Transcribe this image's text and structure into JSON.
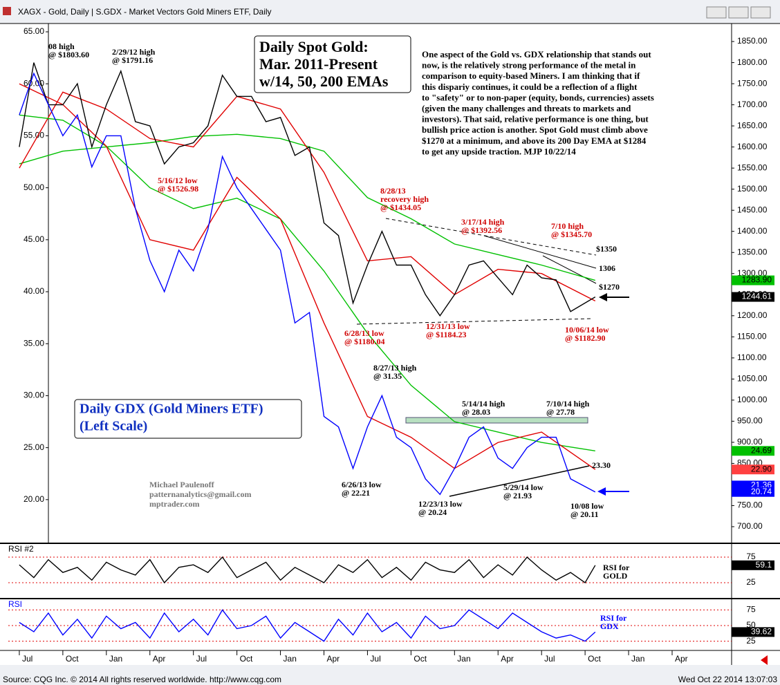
{
  "window": {
    "title": "XAGX - Gold, Daily  |  S.GDX - Market Vectors Gold Miners ETF, Daily",
    "source": "Source: CQG Inc. © 2014 All rights reserved worldwide. http://www.cqg.com",
    "timestamp": "Wed Oct 22 2014 13:07:03"
  },
  "chart_data": [
    {
      "type": "line",
      "title": [
        "Daily Spot Gold:",
        "Mar. 2011-Present",
        "w/14, 50, 200 EMAs"
      ],
      "subtitle": [
        "Daily GDX (Gold Miners ETF)",
        "(Left Scale)"
      ],
      "commentary": [
        "One aspect of the Gold vs. GDX relationship that stands out",
        "now, is the relatively strong performance of the metal in",
        "comparison to equity-based Miners. I am thinking that if",
        "this dispariy continues, it could be a reflection of a flight",
        "to \"safety\" or to non-paper (equity, bonds, currencies) assets",
        "(given the many challenges and threats to markets and",
        "investors). That said, relative performance is one thing, but",
        "bullish price action is another. Spot Gold must climb above",
        "$1270 at a minimum, and above its 200 Day EMA at $1284",
        "to get any upside traction.  MJP 10/22/14"
      ],
      "credits": [
        "Michael Paulenoff",
        "patternanalytics@gmail.com",
        "mptrader.com"
      ],
      "xlim": [
        -0.76,
        49.1
      ],
      "xticks": [
        {
          "value": 0,
          "label": "Jul"
        },
        {
          "value": 3,
          "label": "Oct"
        },
        {
          "value": 6,
          "label": "Jan"
        },
        {
          "value": 9,
          "label": "Apr"
        },
        {
          "value": 12,
          "label": "Jul"
        },
        {
          "value": 15,
          "label": "Oct"
        },
        {
          "value": 18,
          "label": "Jan"
        },
        {
          "value": 21,
          "label": "Apr"
        },
        {
          "value": 24,
          "label": "Jul"
        },
        {
          "value": 27,
          "label": "Oct"
        },
        {
          "value": 30,
          "label": "Jan"
        },
        {
          "value": 33,
          "label": "Apr"
        },
        {
          "value": 36,
          "label": "Jul"
        },
        {
          "value": 39,
          "label": "Oct"
        },
        {
          "value": 42,
          "label": "Jan"
        },
        {
          "value": 45,
          "label": "Apr"
        }
      ],
      "ylim": [
        15.8,
        65.8
      ],
      "yticks": [
        {
          "value": 20,
          "label": "20.00"
        },
        {
          "value": 25,
          "label": "25.00"
        },
        {
          "value": 30,
          "label": "30.00"
        },
        {
          "value": 35,
          "label": "35.00"
        },
        {
          "value": 40,
          "label": "40.00"
        },
        {
          "value": 45,
          "label": "45.00"
        },
        {
          "value": 50,
          "label": "50.00"
        },
        {
          "value": 55,
          "label": "55.00"
        },
        {
          "value": 60,
          "label": "60.00"
        },
        {
          "value": 65,
          "label": "65.00"
        }
      ],
      "y2lim": [
        660.6,
        1892.7
      ],
      "y2ticks": [
        {
          "value": 700,
          "label": "700.00"
        },
        {
          "value": 750,
          "label": "750.00"
        },
        {
          "value": 800,
          "label": "800.00"
        },
        {
          "value": 850,
          "label": "850.00"
        },
        {
          "value": 900,
          "label": "900.00"
        },
        {
          "value": 950,
          "label": "950.00"
        },
        {
          "value": 1000,
          "label": "1000.00"
        },
        {
          "value": 1050,
          "label": "1050.00"
        },
        {
          "value": 1100,
          "label": "1100.00"
        },
        {
          "value": 1150,
          "label": "1150.00"
        },
        {
          "value": 1200,
          "label": "1200.00"
        },
        {
          "value": 1250,
          "label": "1250.00"
        },
        {
          "value": 1300,
          "label": "1300.00"
        },
        {
          "value": 1350,
          "label": "1350.00"
        },
        {
          "value": 1400,
          "label": "1400.00"
        },
        {
          "value": 1450,
          "label": "1450.00"
        },
        {
          "value": 1500,
          "label": "1500.00"
        },
        {
          "value": 1550,
          "label": "1550.00"
        },
        {
          "value": 1600,
          "label": "1600.00"
        },
        {
          "value": 1650,
          "label": "1650.00"
        },
        {
          "value": 1700,
          "label": "1700.00"
        },
        {
          "value": 1750,
          "label": "1750.00"
        },
        {
          "value": 1800,
          "label": "1800.00"
        },
        {
          "value": 1850,
          "label": "1850.00"
        }
      ],
      "series": [
        {
          "color": "#00c000",
          "axis": "y2",
          "x": [
            0,
            3,
            6,
            9,
            12,
            15,
            18,
            21,
            24,
            27,
            30,
            33,
            36,
            39.7
          ],
          "values": [
            1560,
            1590,
            1600,
            1610,
            1625,
            1630,
            1620,
            1590,
            1480,
            1430,
            1370,
            1345,
            1320,
            1283.9
          ]
        },
        {
          "color": "#e00000",
          "axis": "y2",
          "x": [
            0,
            3,
            6,
            9,
            12,
            15,
            18,
            21,
            24,
            27,
            30,
            33,
            36,
            39.7
          ],
          "values": [
            1550,
            1730,
            1690,
            1620,
            1600,
            1720,
            1690,
            1540,
            1330,
            1340,
            1250,
            1310,
            1300,
            1235
          ]
        },
        {
          "color": "#00c000",
          "axis": "y",
          "x": [
            0,
            3,
            6,
            9,
            12,
            15,
            18,
            21,
            24,
            27,
            30,
            33,
            36,
            39.7
          ],
          "values": [
            57,
            56.5,
            54,
            50,
            48,
            49,
            47,
            42,
            36,
            31,
            27.5,
            26.5,
            25.5,
            24.69
          ]
        },
        {
          "color": "#e00000",
          "axis": "y",
          "x": [
            0,
            3,
            6,
            9,
            12,
            15,
            18,
            21,
            24,
            27,
            30,
            33,
            36,
            39.7
          ],
          "values": [
            60,
            58,
            54,
            45,
            44,
            51,
            47,
            37,
            28,
            26,
            23,
            25.5,
            26.5,
            22.9
          ]
        },
        {
          "color": "#000000",
          "axis": "y2",
          "x": [
            0,
            1,
            2,
            3,
            4,
            5,
            6,
            7,
            8,
            9,
            10,
            11,
            12,
            13,
            14,
            15,
            16,
            17,
            18,
            19,
            20,
            21,
            22,
            23,
            24,
            25,
            26,
            27,
            28,
            29,
            30,
            31,
            32,
            33,
            34,
            35,
            36,
            37,
            38,
            39.7
          ],
          "values": [
            1600,
            1800,
            1700,
            1700,
            1750,
            1600,
            1700,
            1780,
            1660,
            1650,
            1560,
            1600,
            1610,
            1650,
            1770,
            1720,
            1720,
            1660,
            1670,
            1580,
            1600,
            1420,
            1390,
            1230,
            1320,
            1400,
            1320,
            1320,
            1250,
            1200,
            1250,
            1320,
            1330,
            1290,
            1250,
            1320,
            1290,
            1285,
            1210,
            1244.61
          ]
        },
        {
          "color": "#0000ff",
          "axis": "y",
          "x": [
            0,
            1,
            2,
            3,
            4,
            5,
            6,
            7,
            8,
            9,
            10,
            11,
            12,
            13,
            14,
            15,
            16,
            17,
            18,
            19,
            20,
            21,
            22,
            23,
            24,
            25,
            26,
            27,
            28,
            29,
            30,
            31,
            32,
            33,
            34,
            35,
            36,
            37,
            38,
            39.7
          ],
          "values": [
            57,
            61,
            58,
            55,
            57,
            52,
            55,
            55,
            48,
            43,
            40,
            44,
            42,
            46,
            53,
            50,
            48,
            46,
            44,
            37,
            38,
            28,
            27,
            23,
            27,
            30,
            26,
            25,
            22,
            20.5,
            23,
            26,
            27,
            24,
            23,
            25,
            26,
            26,
            22,
            20.74
          ]
        }
      ],
      "last_values": [
        {
          "value": 1283.9,
          "label": "1283.90",
          "axis": "y2",
          "color": "#00c000"
        },
        {
          "value": 1244.61,
          "label": "1244.61",
          "axis": "y2",
          "color": "#000000"
        },
        {
          "value": 24.69,
          "label": "24.69",
          "axis": "y",
          "color": "#00c000"
        },
        {
          "value": 22.9,
          "label": "22.90",
          "axis": "y",
          "color": "#ff4040"
        },
        {
          "value": 21.36,
          "label": "21.36",
          "axis": "y",
          "color": "#0000ff"
        },
        {
          "value": 20.74,
          "label": "20.74",
          "axis": "y",
          "color": "#0000ff"
        }
      ],
      "annotations": [
        {
          "text": [
            "08 high",
            "@ $1803.60"
          ],
          "color": "#000000"
        },
        {
          "text": [
            "2/29/12 high",
            "@ $1791.16"
          ],
          "color": "#000000"
        },
        {
          "text": [
            "5/16/12 low",
            "@ $1526.98"
          ],
          "color": "#d00000"
        },
        {
          "text": [
            "8/28/13",
            "recovery high",
            "@ $1434.05"
          ],
          "color": "#d00000"
        },
        {
          "text": [
            "3/17/14 high",
            "@ $1392.56"
          ],
          "color": "#d00000"
        },
        {
          "text": [
            "7/10 high",
            "@ $1345.70"
          ],
          "color": "#d00000"
        },
        {
          "text": [
            "$1350"
          ],
          "color": "#000000"
        },
        {
          "text": [
            "1306"
          ],
          "color": "#000000"
        },
        {
          "text": [
            "$1270"
          ],
          "color": "#000000"
        },
        {
          "text": [
            "6/28/13 low",
            "@ $1180.04"
          ],
          "color": "#d00000"
        },
        {
          "text": [
            "12/31/13 low",
            "@ $1184.23"
          ],
          "color": "#d00000"
        },
        {
          "text": [
            "10/06/14 low",
            "@ $1182.90"
          ],
          "color": "#d00000"
        },
        {
          "text": [
            "8/27/13 high",
            "@ 31.35"
          ],
          "color": "#000000"
        },
        {
          "text": [
            "5/14/14 high",
            "@ 28.03"
          ],
          "color": "#000000"
        },
        {
          "text": [
            "7/10/14 high",
            "@ 27.78"
          ],
          "color": "#000000"
        },
        {
          "text": [
            "23.30"
          ],
          "color": "#000000"
        },
        {
          "text": [
            "6/26/13 low",
            "@ 22.21"
          ],
          "color": "#000000"
        },
        {
          "text": [
            "5/29/14 low",
            "@ 21.93"
          ],
          "color": "#000000"
        },
        {
          "text": [
            "12/23/13 low",
            "@ 20.24"
          ],
          "color": "#000000"
        },
        {
          "text": [
            "10/08 low",
            "@ 20.11"
          ],
          "color": "#000000"
        }
      ]
    },
    {
      "type": "line",
      "title": "RSI #2",
      "ylim": [
        -4.7,
        100.7
      ],
      "yticks": [
        75,
        25
      ],
      "series": [
        {
          "color": "#000000",
          "x": [
            0,
            1,
            2,
            3,
            4,
            5,
            6,
            7,
            8,
            9,
            10,
            11,
            12,
            13,
            14,
            15,
            16,
            17,
            18,
            19,
            20,
            21,
            22,
            23,
            24,
            25,
            26,
            27,
            28,
            29,
            30,
            31,
            32,
            33,
            34,
            35,
            36,
            37,
            38,
            39,
            39.7
          ],
          "values": [
            60,
            35,
            70,
            45,
            55,
            30,
            65,
            50,
            40,
            70,
            25,
            55,
            60,
            45,
            75,
            35,
            50,
            65,
            30,
            55,
            40,
            25,
            60,
            45,
            70,
            35,
            55,
            30,
            65,
            50,
            45,
            70,
            35,
            60,
            40,
            75,
            50,
            30,
            45,
            25,
            59.1
          ]
        }
      ],
      "last_values": [
        {
          "value": 59.1,
          "label": "59.1",
          "color": "#000000"
        }
      ],
      "annotations": [
        {
          "text": [
            "RSI for",
            "GOLD"
          ],
          "color": "#000000"
        }
      ]
    },
    {
      "type": "line",
      "title": "RSI",
      "ylim": [
        10.2,
        92
      ],
      "yticks": [
        75,
        50,
        25
      ],
      "series": [
        {
          "color": "#0000ff",
          "x": [
            0,
            1,
            2,
            3,
            4,
            5,
            6,
            7,
            8,
            9,
            10,
            11,
            12,
            13,
            14,
            15,
            16,
            17,
            18,
            19,
            20,
            21,
            22,
            23,
            24,
            25,
            26,
            27,
            28,
            29,
            30,
            31,
            32,
            33,
            34,
            35,
            36,
            37,
            38,
            39,
            39.7
          ],
          "values": [
            55,
            40,
            70,
            35,
            60,
            30,
            65,
            45,
            55,
            30,
            70,
            40,
            60,
            35,
            75,
            45,
            50,
            65,
            30,
            55,
            40,
            25,
            60,
            35,
            70,
            40,
            55,
            30,
            65,
            45,
            50,
            75,
            60,
            45,
            70,
            55,
            40,
            30,
            35,
            25,
            39.62
          ]
        }
      ],
      "last_values": [
        {
          "value": 39.62,
          "label": "39.62",
          "color": "#000000"
        }
      ],
      "annotations": [
        {
          "text": [
            "RSI for",
            "GDX"
          ],
          "color": "#0000ff"
        }
      ]
    }
  ]
}
